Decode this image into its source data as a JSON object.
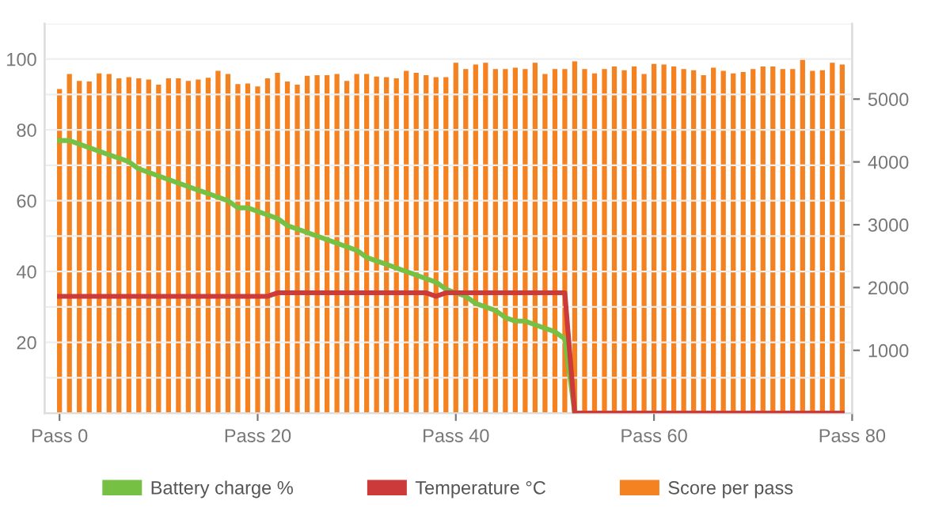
{
  "chart_data": {
    "type": "bar",
    "categories": [
      "Pass 0",
      null,
      null,
      null,
      null,
      null,
      null,
      null,
      null,
      null,
      null,
      null,
      null,
      null,
      null,
      null,
      null,
      null,
      null,
      null,
      "Pass 20",
      null,
      null,
      null,
      null,
      null,
      null,
      null,
      null,
      null,
      null,
      null,
      null,
      null,
      null,
      null,
      null,
      null,
      null,
      null,
      "Pass 40",
      null,
      null,
      null,
      null,
      null,
      null,
      null,
      null,
      null,
      null,
      null,
      null,
      null,
      null,
      null,
      null,
      null,
      null,
      null,
      "Pass 60",
      null,
      null,
      null,
      null,
      null,
      null,
      null,
      null,
      null,
      null,
      null,
      null,
      null,
      null,
      null,
      null,
      null,
      null,
      null,
      "Pass 80"
    ],
    "series": [
      {
        "name": "Battery charge %",
        "type": "line",
        "color": "#76c043",
        "values": [
          77,
          77,
          76,
          75,
          74,
          73,
          72,
          71,
          69,
          68,
          67,
          66,
          65,
          64,
          63,
          62,
          61,
          60,
          58,
          58,
          57,
          56,
          55,
          53,
          52,
          51,
          50,
          49,
          48,
          47,
          46,
          44,
          43,
          42,
          41,
          40,
          39,
          38,
          37,
          35,
          34,
          33,
          31,
          30,
          29,
          27,
          26,
          26,
          25,
          24,
          23,
          21,
          0,
          null,
          null,
          null,
          null,
          null,
          null,
          null,
          null,
          null,
          null,
          null,
          null,
          null,
          null,
          null,
          null,
          null,
          null,
          null,
          null,
          null,
          null,
          null,
          null,
          null,
          null,
          null,
          null
        ]
      },
      {
        "name": "Temperature °C",
        "type": "line",
        "color": "#cc3a3a",
        "values": [
          33,
          33,
          33,
          33,
          33,
          33,
          33,
          33,
          33,
          33,
          33,
          33,
          33,
          33,
          33,
          33,
          33,
          33,
          33,
          33,
          33,
          33,
          34,
          34,
          34,
          34,
          34,
          34,
          34,
          34,
          34,
          34,
          34,
          34,
          34,
          34,
          34,
          34,
          33,
          34,
          34,
          34,
          34,
          34,
          34,
          34,
          34,
          34,
          34,
          34,
          34,
          34,
          0,
          0,
          0,
          0,
          0,
          0,
          0,
          0,
          0,
          0,
          0,
          0,
          0,
          0,
          0,
          0,
          0,
          0,
          0,
          0,
          0,
          0,
          0,
          0,
          0,
          0,
          0,
          0,
          null
        ]
      },
      {
        "name": "Score per pass",
        "axis": "y2",
        "color": "#f58220",
        "values": [
          5160,
          5400,
          5290,
          5280,
          5410,
          5400,
          5330,
          5350,
          5330,
          5310,
          5230,
          5330,
          5330,
          5290,
          5310,
          5340,
          5450,
          5400,
          5240,
          5250,
          5200,
          5330,
          5420,
          5280,
          5230,
          5370,
          5380,
          5380,
          5400,
          5290,
          5400,
          5400,
          5360,
          5350,
          5330,
          5450,
          5420,
          5380,
          5350,
          5350,
          5580,
          5480,
          5550,
          5580,
          5480,
          5480,
          5500,
          5480,
          5580,
          5400,
          5480,
          5480,
          5600,
          5480,
          5410,
          5480,
          5520,
          5460,
          5520,
          5400,
          5560,
          5550,
          5520,
          5480,
          5460,
          5380,
          5500,
          5450,
          5410,
          5430,
          5480,
          5520,
          5520,
          5480,
          5480,
          5650,
          5450,
          5460,
          5580,
          5550,
          null
        ]
      }
    ],
    "ylim": [
      0,
      110
    ],
    "yticks": [
      {
        "value": 10,
        "label": null
      },
      20,
      {
        "value": 30,
        "label": null
      },
      40,
      {
        "value": 50,
        "label": null
      },
      60,
      {
        "value": 70,
        "label": null
      },
      80,
      {
        "value": 90,
        "label": null
      },
      100,
      {
        "value": 110,
        "label": null
      }
    ],
    "y2lim": [
      0,
      6200
    ],
    "y2ticks": [
      1000,
      2000,
      3000,
      4000,
      5000
    ],
    "grid": "y",
    "legend": "bottom"
  }
}
